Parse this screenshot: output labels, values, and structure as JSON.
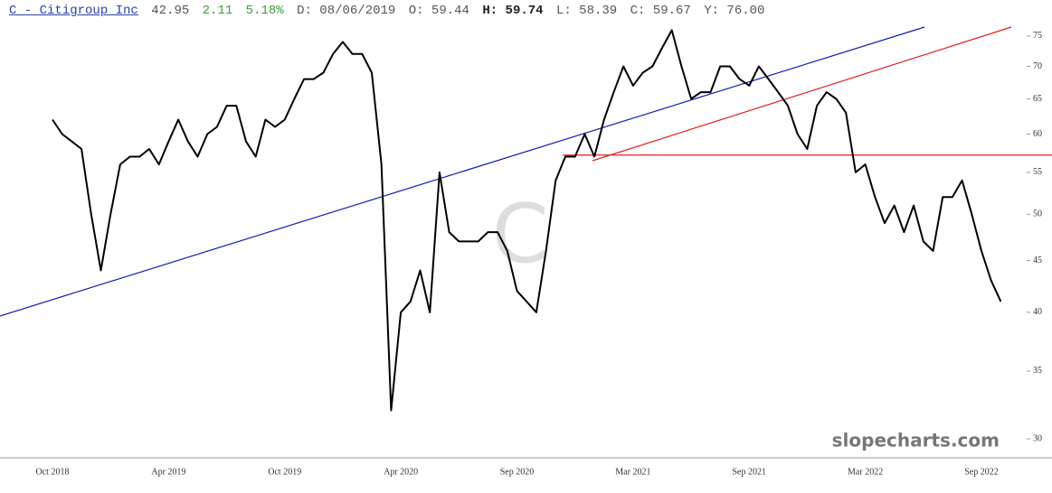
{
  "header": {
    "symbol": "C - Citigroup Inc",
    "last": "42.95",
    "change": "2.11",
    "change_pct": "5.18%",
    "date": "D: 08/06/2019",
    "open": "O: 59.44",
    "high": "H: 59.74",
    "low": "L: 58.39",
    "close": "C: 59.67",
    "y": "Y: 76.00"
  },
  "watermark": "slopecharts.com",
  "chart_data": {
    "type": "line",
    "log_y": true,
    "categories": [
      "Oct 2018",
      null,
      null,
      null,
      null,
      null,
      null,
      null,
      null,
      null,
      null,
      null,
      "Apr 2019",
      null,
      null,
      null,
      null,
      null,
      null,
      null,
      null,
      null,
      null,
      null,
      "Oct 2019",
      null,
      null,
      null,
      null,
      null,
      null,
      null,
      null,
      null,
      null,
      null,
      "Apr 2020",
      null,
      null,
      null,
      null,
      null,
      null,
      null,
      null,
      null,
      null,
      null,
      "Sep 2020",
      null,
      null,
      null,
      null,
      null,
      null,
      null,
      null,
      null,
      null,
      null,
      "Mar 2021",
      null,
      null,
      null,
      null,
      null,
      null,
      null,
      null,
      null,
      null,
      null,
      "Sep 2021",
      null,
      null,
      null,
      null,
      null,
      null,
      null,
      null,
      null,
      null,
      null,
      "Mar 2022",
      null,
      null,
      null,
      null,
      null,
      null,
      null,
      null,
      null,
      null,
      null,
      "Sep 2022",
      null,
      null
    ],
    "series": [
      {
        "color": "#000000",
        "values": [
          62,
          60,
          59,
          58,
          50,
          44,
          50,
          56,
          57,
          57,
          58,
          56,
          59,
          62,
          59,
          57,
          60,
          61,
          64,
          64,
          59,
          57,
          62,
          61,
          62,
          65,
          68,
          68,
          69,
          72,
          74,
          72,
          72,
          69,
          56,
          32,
          40,
          41,
          44,
          40,
          55,
          48,
          47,
          47,
          47,
          48,
          48,
          46,
          42,
          41,
          40,
          46,
          54,
          57,
          57,
          60,
          57,
          62,
          66,
          70,
          67,
          69,
          70,
          73,
          76,
          70,
          65,
          66,
          66,
          70,
          70,
          68,
          67,
          70,
          68,
          66,
          64,
          60,
          58,
          64,
          66,
          65,
          63,
          55,
          56,
          52,
          49,
          51,
          48,
          51,
          47,
          46,
          52,
          52,
          54,
          50,
          46,
          43,
          41
        ]
      }
    ],
    "ylim": [
      28.85,
      81.4
    ],
    "yticks": [
      30,
      35,
      40,
      45,
      50,
      55,
      60,
      65,
      70,
      75
    ],
    "hline": {
      "value": 57.2,
      "color": "#e02020"
    }
  }
}
